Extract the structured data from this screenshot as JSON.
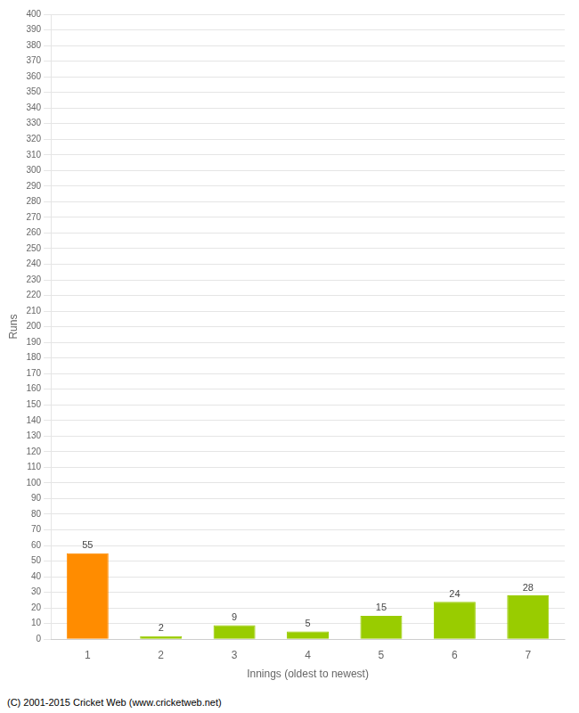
{
  "chart_data": {
    "type": "bar",
    "categories": [
      "1",
      "2",
      "3",
      "4",
      "5",
      "6",
      "7"
    ],
    "values": [
      55,
      2,
      9,
      5,
      15,
      24,
      28
    ],
    "colors": [
      "#ff8c00",
      "#99cc00",
      "#99cc00",
      "#99cc00",
      "#99cc00",
      "#99cc00",
      "#99cc00"
    ],
    "x_label": "Innings (oldest to newest)",
    "y_label": "Runs",
    "ylim": [
      0,
      400
    ],
    "yticks": [
      0,
      10,
      20,
      30,
      40,
      50,
      60,
      70,
      80,
      90,
      100,
      110,
      120,
      130,
      140,
      150,
      160,
      170,
      180,
      190,
      200,
      210,
      220,
      230,
      240,
      250,
      260,
      270,
      280,
      290,
      300,
      310,
      320,
      330,
      340,
      350,
      360,
      370,
      380,
      390,
      400
    ],
    "grid": true,
    "data_labels": true,
    "annotations": [
      "(C) 2001-2015 Cricket Web (www.cricketweb.net)"
    ]
  }
}
